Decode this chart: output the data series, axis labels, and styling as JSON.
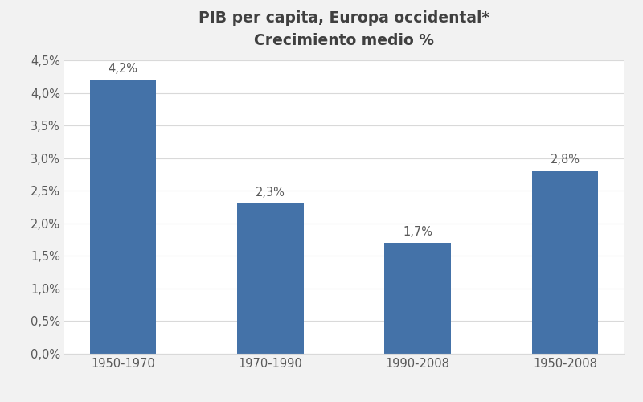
{
  "title_line1": "PIB per capita, Europa occidental*",
  "title_line2": "Crecimiento medio %",
  "categories": [
    "1950-1970",
    "1970-1990",
    "1990-2008",
    "1950-2008"
  ],
  "values": [
    4.2,
    2.3,
    1.7,
    2.8
  ],
  "bar_color": "#4472a8",
  "bar_labels": [
    "4,2%",
    "2,3%",
    "1,7%",
    "2,8%"
  ],
  "ylim": [
    0,
    0.045
  ],
  "yticks": [
    0.0,
    0.005,
    0.01,
    0.015,
    0.02,
    0.025,
    0.03,
    0.035,
    0.04,
    0.045
  ],
  "ytick_labels": [
    "0,0%",
    "0,5%",
    "1,0%",
    "1,5%",
    "2,0%",
    "2,5%",
    "3,0%",
    "3,5%",
    "4,0%",
    "4,5%"
  ],
  "background_color": "#f2f2f2",
  "plot_bg_color": "#ffffff",
  "grid_color": "#d9d9d9",
  "title_fontsize": 13.5,
  "tick_fontsize": 10.5,
  "bar_label_fontsize": 10.5,
  "title_color": "#404040",
  "tick_color": "#595959",
  "bar_label_color": "#595959",
  "bar_width": 0.45
}
